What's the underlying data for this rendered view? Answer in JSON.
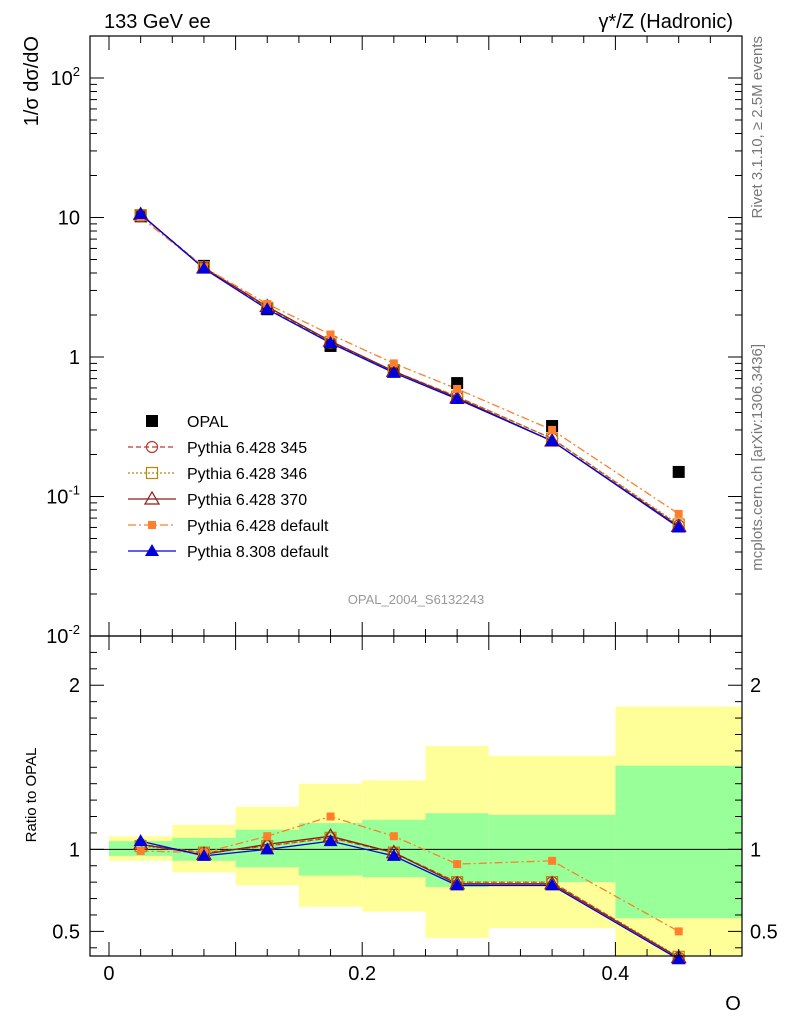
{
  "header": {
    "left": "133 GeV ee",
    "right": "γ*/Z (Hadronic)"
  },
  "side_labels": {
    "rivet": "Rivet 3.1.10, ≥ 2.5M events",
    "source": "mcplots.cern.ch [arXiv:1306.3436]"
  },
  "analysis_id": "OPAL_2004_S6132243",
  "colors": {
    "data": "#000000",
    "p345": "#c0392b",
    "p346": "#b8860b",
    "p370": "#8b1a1a",
    "pdefault": "#ff7f2a",
    "p8": "#0000dd",
    "band_inner": "#99ff99",
    "band_outer": "#ffff99"
  },
  "chart_data": [
    {
      "type": "line",
      "panel": "main",
      "ylabel": "1/σ dσ/dO",
      "yscale": "log",
      "ylim": [
        0.01,
        200
      ],
      "xlim": [
        -0.015,
        0.5
      ],
      "ytick_labels": [
        "10^-2",
        "10^-1",
        "1",
        "10",
        "10^2"
      ],
      "legend_placement": "middle-left",
      "x": [
        0.025,
        0.075,
        0.125,
        0.175,
        0.225,
        0.275,
        0.35,
        0.45
      ],
      "series": [
        {
          "name": "OPAL",
          "marker": "square",
          "values": [
            10.2,
            4.5,
            2.2,
            1.2,
            0.8,
            0.65,
            0.32,
            0.15
          ]
        },
        {
          "name": "Pythia 6.428 345",
          "marker": "circle",
          "values": [
            10.5,
            4.4,
            2.25,
            1.27,
            0.79,
            0.52,
            0.26,
            0.062
          ]
        },
        {
          "name": "Pythia 6.428 346",
          "marker": "square-open",
          "values": [
            10.4,
            4.4,
            2.25,
            1.28,
            0.79,
            0.52,
            0.26,
            0.063
          ]
        },
        {
          "name": "Pythia 6.428 370",
          "marker": "triangle-open",
          "values": [
            10.5,
            4.35,
            2.3,
            1.3,
            0.79,
            0.51,
            0.25,
            0.061
          ]
        },
        {
          "name": "Pythia 6.428 default",
          "marker": "square-small",
          "values": [
            10.0,
            4.4,
            2.4,
            1.45,
            0.9,
            0.59,
            0.3,
            0.075
          ]
        },
        {
          "name": "Pythia 8.308 default",
          "marker": "triangle",
          "values": [
            10.6,
            4.3,
            2.2,
            1.26,
            0.77,
            0.5,
            0.25,
            0.06
          ]
        }
      ]
    },
    {
      "type": "line",
      "panel": "ratio",
      "ylabel": "Ratio to OPAL",
      "xlabel": "O",
      "ylim": [
        0.35,
        2.3
      ],
      "xlim": [
        -0.015,
        0.5
      ],
      "xtick_labels": [
        "0",
        "0.2",
        "0.4"
      ],
      "ytick_labels": [
        "0.5",
        "1",
        "2"
      ],
      "bins": [
        [
          0.0,
          0.05
        ],
        [
          0.05,
          0.1
        ],
        [
          0.1,
          0.15
        ],
        [
          0.15,
          0.2
        ],
        [
          0.2,
          0.25
        ],
        [
          0.25,
          0.3
        ],
        [
          0.3,
          0.4
        ],
        [
          0.4,
          0.5
        ]
      ],
      "band_inner": [
        [
          0.96,
          1.05
        ],
        [
          0.93,
          1.07
        ],
        [
          0.89,
          1.12
        ],
        [
          0.84,
          1.16
        ],
        [
          0.83,
          1.18
        ],
        [
          0.77,
          1.22
        ],
        [
          0.8,
          1.21
        ],
        [
          0.58,
          1.51
        ]
      ],
      "band_outer": [
        [
          0.93,
          1.08
        ],
        [
          0.86,
          1.15
        ],
        [
          0.78,
          1.26
        ],
        [
          0.65,
          1.4
        ],
        [
          0.62,
          1.42
        ],
        [
          0.46,
          1.63
        ],
        [
          0.52,
          1.57
        ],
        [
          0.33,
          1.87
        ]
      ],
      "x": [
        0.025,
        0.075,
        0.125,
        0.175,
        0.225,
        0.275,
        0.35,
        0.45
      ],
      "series": [
        {
          "name": "Pythia 6.428 345",
          "values": [
            1.03,
            0.98,
            1.02,
            1.07,
            0.98,
            0.8,
            0.8,
            0.34
          ]
        },
        {
          "name": "Pythia 6.428 346",
          "values": [
            1.02,
            0.98,
            1.02,
            1.07,
            0.98,
            0.8,
            0.8,
            0.345
          ]
        },
        {
          "name": "Pythia 6.428 370",
          "values": [
            1.03,
            0.97,
            1.03,
            1.08,
            0.98,
            0.79,
            0.79,
            0.34
          ]
        },
        {
          "name": "Pythia 6.428 default",
          "values": [
            0.99,
            0.98,
            1.08,
            1.2,
            1.08,
            0.91,
            0.93,
            0.5
          ]
        },
        {
          "name": "Pythia 8.308 default",
          "values": [
            1.05,
            0.96,
            1.0,
            1.05,
            0.96,
            0.78,
            0.78,
            0.33
          ]
        }
      ]
    }
  ]
}
